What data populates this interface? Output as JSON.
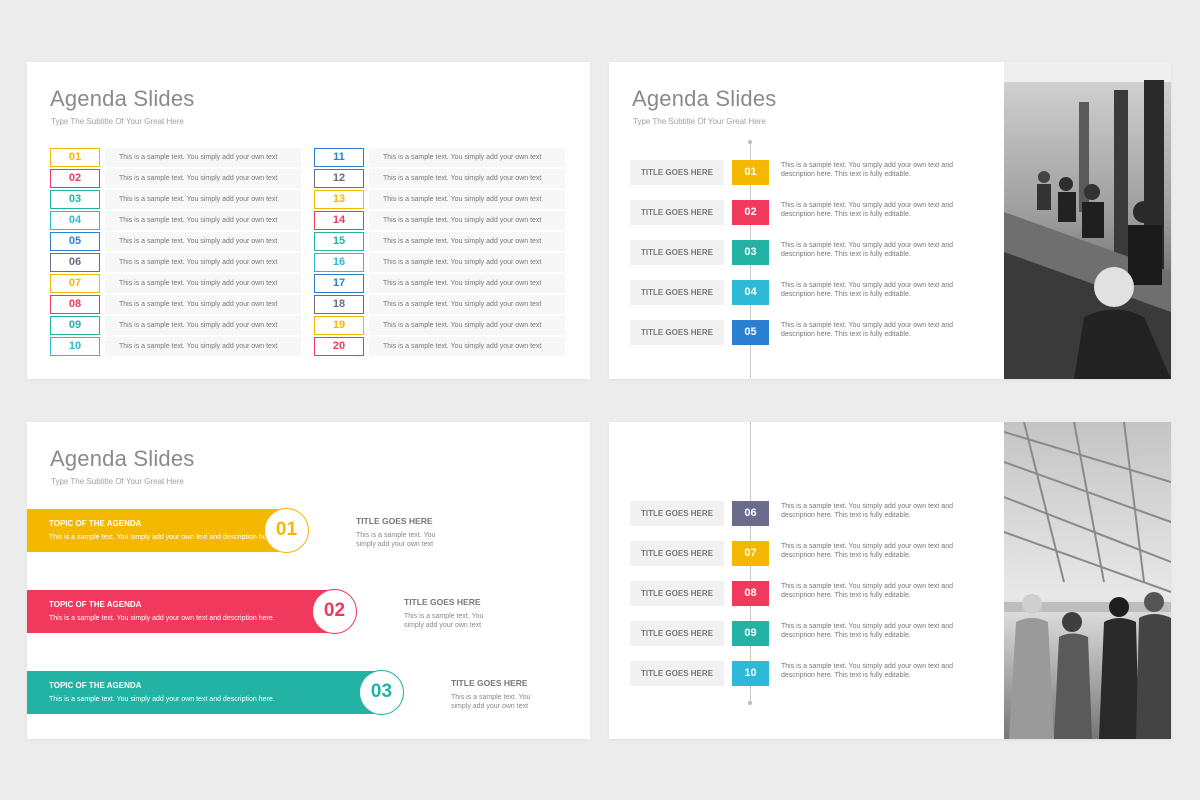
{
  "slide1": {
    "title": "Agenda Slides",
    "subtitle": "Type The Subtitle Of Your Great Here",
    "rows": [
      {
        "num": "01",
        "color": "#f5b800",
        "text": "This is a sample text. You simply add your own text"
      },
      {
        "num": "02",
        "color": "#f0395d",
        "text": "This is a sample text. You simply add your own text"
      },
      {
        "num": "03",
        "color": "#22b3a4",
        "text": "This is a sample text. You simply add your own text"
      },
      {
        "num": "04",
        "color": "#2eb9d6",
        "text": "This is a sample text. You simply add your own text"
      },
      {
        "num": "05",
        "color": "#2a7fd1",
        "text": "This is a sample text. You simply add your own text"
      },
      {
        "num": "06",
        "color": "#6b6b8b",
        "text": "This is a sample text. You simply add your own text"
      },
      {
        "num": "07",
        "color": "#f5b800",
        "text": "This is a sample text. You simply add your own text"
      },
      {
        "num": "08",
        "color": "#f0395d",
        "text": "This is a sample text. You simply add your own text"
      },
      {
        "num": "09",
        "color": "#22b3a4",
        "text": "This is a sample text. You simply add your own text"
      },
      {
        "num": "10",
        "color": "#2eb9d6",
        "text": "This is a sample text. You simply add your own text"
      },
      {
        "num": "11",
        "color": "#2a7fd1",
        "text": "This is a sample text. You simply add your own text"
      },
      {
        "num": "12",
        "color": "#6b6b8b",
        "text": "This is a sample text. You simply add your own text"
      },
      {
        "num": "13",
        "color": "#f5b800",
        "text": "This is a sample text. You simply add your own text"
      },
      {
        "num": "14",
        "color": "#f0395d",
        "text": "This is a sample text. You simply add your own text"
      },
      {
        "num": "15",
        "color": "#22b3a4",
        "text": "This is a sample text. You simply add your own text"
      },
      {
        "num": "16",
        "color": "#2eb9d6",
        "text": "This is a sample text. You simply add your own text"
      },
      {
        "num": "17",
        "color": "#2a7fd1",
        "text": "This is a sample text. You simply add your own text"
      },
      {
        "num": "18",
        "color": "#6b6b8b",
        "text": "This is a sample text. You simply add your own text"
      },
      {
        "num": "19",
        "color": "#f5b800",
        "text": "This is a sample text. You simply add your own text"
      },
      {
        "num": "20",
        "color": "#f0395d",
        "text": "This is a sample text. You simply add your own text"
      }
    ]
  },
  "slide2": {
    "title": "Agenda Slides",
    "subtitle": "Type The Subtitle Of Your Great Here",
    "items": [
      {
        "title": "TITLE GOES HERE",
        "num": "01",
        "color": "#f5b800",
        "desc": "This is a sample text. You simply add your own text and description here. This text is fully editable."
      },
      {
        "title": "TITLE GOES HERE",
        "num": "02",
        "color": "#f0395d",
        "desc": "This is a sample text. You simply add your own text and description here. This text is fully editable."
      },
      {
        "title": "TITLE GOES HERE",
        "num": "03",
        "color": "#22b3a4",
        "desc": "This is a sample text. You simply add your own text and description here. This text is fully editable."
      },
      {
        "title": "TITLE GOES HERE",
        "num": "04",
        "color": "#2eb9d6",
        "desc": "This is a sample text. You simply add your own text and description here. This text is fully editable."
      },
      {
        "title": "TITLE GOES HERE",
        "num": "05",
        "color": "#2a7fd1",
        "desc": "This is a sample text. You simply add your own text and description here. This text is fully editable."
      }
    ]
  },
  "slide3": {
    "title": "Agenda Slides",
    "subtitle": "Type The Subtitle Of Your Great Here",
    "bands": [
      {
        "topic": "TOPIC OF THE AGENDA",
        "desc": "This is a sample text. You simply add your own text and description here.",
        "num": "01",
        "color": "#f5b800",
        "side_title": "TITLE GOES HERE",
        "side_desc": "This is a sample text. You simply add your own text"
      },
      {
        "topic": "TOPIC OF THE AGENDA",
        "desc": "This is a sample text. You simply add your own text and description here.",
        "num": "02",
        "color": "#f0395d",
        "side_title": "TITLE GOES HERE",
        "side_desc": "This is a sample text. You simply add your own text"
      },
      {
        "topic": "TOPIC OF THE AGENDA",
        "desc": "This is a sample text. You simply add your own text and description here.",
        "num": "03",
        "color": "#22b3a4",
        "side_title": "TITLE GOES HERE",
        "side_desc": "This is a sample text. You simply add your own text"
      }
    ]
  },
  "slide4": {
    "items": [
      {
        "title": "TITLE GOES HERE",
        "num": "06",
        "color": "#6b6b8b",
        "desc": "This is a sample text. You simply add your own text and description here. This text is fully editable."
      },
      {
        "title": "TITLE GOES HERE",
        "num": "07",
        "color": "#f5b800",
        "desc": "This is a sample text. You simply add your own text and description here. This text is fully editable."
      },
      {
        "title": "TITLE GOES HERE",
        "num": "08",
        "color": "#f0395d",
        "desc": "This is a sample text. You simply add your own text and description here. This text is fully editable."
      },
      {
        "title": "TITLE GOES HERE",
        "num": "09",
        "color": "#22b3a4",
        "desc": "This is a sample text. You simply add your own text and description here. This text is fully editable."
      },
      {
        "title": "TITLE GOES HERE",
        "num": "10",
        "color": "#2eb9d6",
        "desc": "This is a sample text. You simply add your own text and description here. This text is fully editable."
      }
    ]
  }
}
